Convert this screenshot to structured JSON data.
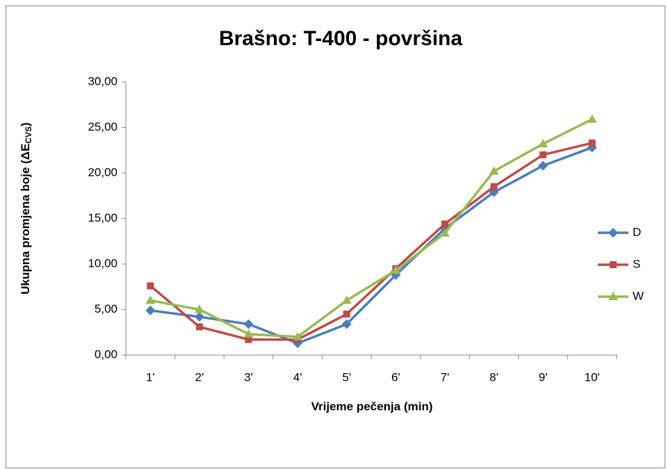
{
  "chart_data": {
    "type": "line",
    "title": "Brašno: T-400 - površina",
    "x_label": "Vrijeme pečenja (min)",
    "y_label_parts": [
      "Ukupna promjena boje (ΔE",
      "CVS",
      ")"
    ],
    "categories": [
      "1'",
      "2'",
      "3'",
      "4'",
      "5'",
      "6'",
      "7'",
      "8'",
      "9'",
      "10'"
    ],
    "series": [
      {
        "name": "D",
        "color": "#4a7ebb",
        "marker": "diamond",
        "values": [
          4.9,
          4.2,
          3.4,
          1.3,
          3.4,
          8.8,
          13.9,
          17.9,
          20.8,
          22.8
        ]
      },
      {
        "name": "S",
        "color": "#be4b48",
        "marker": "square",
        "values": [
          7.6,
          3.1,
          1.7,
          1.7,
          4.5,
          9.5,
          14.4,
          18.5,
          22.0,
          23.3
        ]
      },
      {
        "name": "W",
        "color": "#98b954",
        "marker": "triangle",
        "values": [
          6.0,
          5.0,
          2.3,
          2.0,
          6.0,
          9.3,
          13.4,
          20.2,
          23.2,
          25.9
        ]
      }
    ],
    "ylim": [
      0,
      30
    ],
    "yticks": [
      {
        "value": 0,
        "label": "0,00"
      },
      {
        "value": 5,
        "label": "5,00"
      },
      {
        "value": 10,
        "label": "10,00"
      },
      {
        "value": 15,
        "label": "15,00"
      },
      {
        "value": 20,
        "label": "20,00"
      },
      {
        "value": 25,
        "label": "25,00"
      },
      {
        "value": 30,
        "label": "30,00"
      }
    ],
    "grid": false,
    "legend": "right"
  }
}
